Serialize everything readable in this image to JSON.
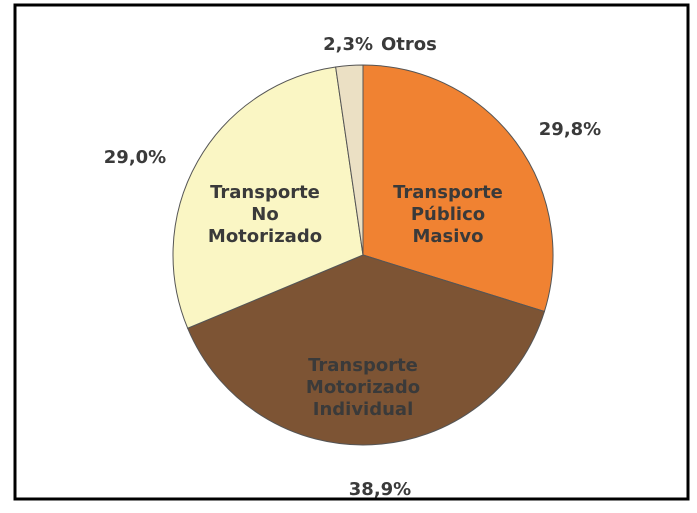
{
  "chart_data": {
    "type": "pie",
    "categories": [
      "Transporte Público Masivo",
      "Transporte Motorizado Individual",
      "Transporte No Motorizado",
      "Otros"
    ],
    "values": [
      29.8,
      38.9,
      29.0,
      2.3
    ],
    "value_labels": [
      "29,8%",
      "38,9%",
      "29,0%",
      "2,3%"
    ],
    "colors": [
      "#f08232",
      "#7d5434",
      "#faf6c4",
      "#ebe0c4"
    ],
    "label_colors": [
      "#3a2614",
      "#ffffff",
      "#3a2614",
      "#3a3a3a"
    ]
  }
}
